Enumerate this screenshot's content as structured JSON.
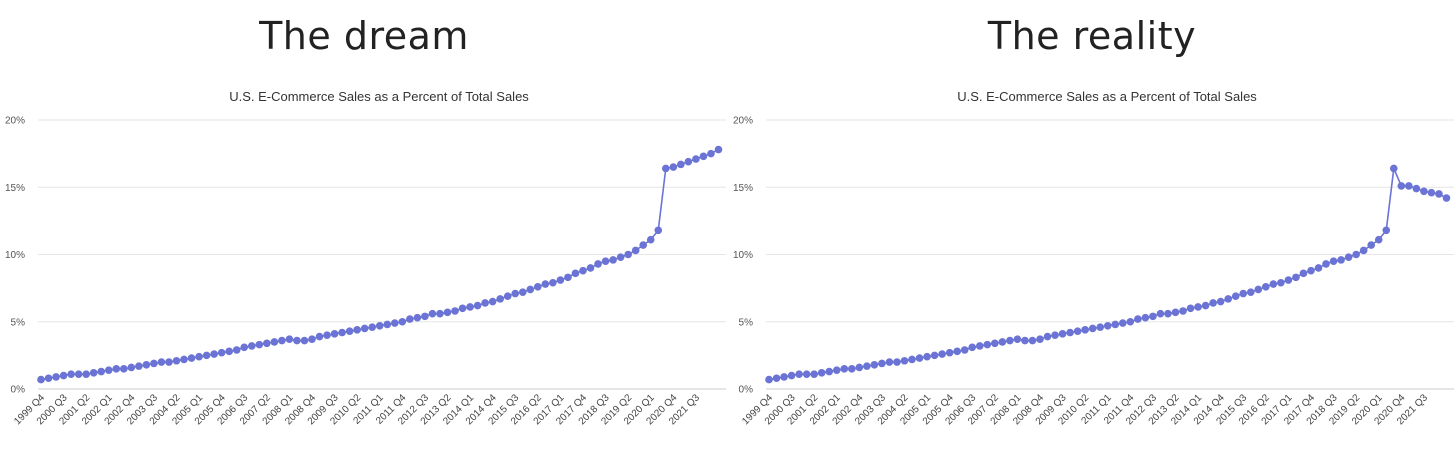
{
  "headings": {
    "left": "The dream",
    "right": "The reality"
  },
  "colors": {
    "series": "#6b74d4",
    "grid": "#e6e6e6",
    "axis": "#cccccc"
  },
  "chart_data": [
    {
      "type": "line",
      "title": "U.S. E-Commerce Sales as a Percent of Total Sales",
      "ylim": [
        0,
        20
      ],
      "yticks": [
        "0%",
        "5%",
        "10%",
        "15%",
        "20%"
      ],
      "ytick_values": [
        0,
        5,
        10,
        15,
        20
      ],
      "x_start": "1999 Q4",
      "tick_labels": [
        "1999 Q4",
        "2000 Q3",
        "2001 Q2",
        "2002 Q1",
        "2002 Q4",
        "2003 Q3",
        "2004 Q2",
        "2005 Q1",
        "2005 Q4",
        "2006 Q3",
        "2007 Q2",
        "2008 Q1",
        "2008 Q4",
        "2009 Q3",
        "2010 Q2",
        "2011 Q1",
        "2011 Q4",
        "2012 Q3",
        "2013 Q2",
        "2014 Q1",
        "2014 Q4",
        "2015 Q3",
        "2016 Q2",
        "2017 Q1",
        "2017 Q4",
        "2018 Q3",
        "2019 Q2",
        "2020 Q1",
        "2020 Q4",
        "2021 Q3"
      ],
      "tick_positions": [
        0,
        3,
        6,
        9,
        12,
        15,
        18,
        21,
        24,
        27,
        30,
        33,
        36,
        39,
        42,
        45,
        48,
        51,
        54,
        57,
        60,
        63,
        66,
        69,
        72,
        75,
        78,
        81,
        84,
        87
      ],
      "values": [
        0.7,
        0.8,
        0.9,
        1.0,
        1.1,
        1.1,
        1.1,
        1.2,
        1.3,
        1.4,
        1.5,
        1.5,
        1.6,
        1.7,
        1.8,
        1.9,
        2.0,
        2.0,
        2.1,
        2.2,
        2.3,
        2.4,
        2.5,
        2.6,
        2.7,
        2.8,
        2.9,
        3.1,
        3.2,
        3.3,
        3.4,
        3.5,
        3.6,
        3.7,
        3.6,
        3.6,
        3.7,
        3.9,
        4.0,
        4.1,
        4.2,
        4.3,
        4.4,
        4.5,
        4.6,
        4.7,
        4.8,
        4.9,
        5.0,
        5.2,
        5.3,
        5.4,
        5.6,
        5.6,
        5.7,
        5.8,
        6.0,
        6.1,
        6.2,
        6.4,
        6.5,
        6.7,
        6.9,
        7.1,
        7.2,
        7.4,
        7.6,
        7.8,
        7.9,
        8.1,
        8.3,
        8.6,
        8.8,
        9.0,
        9.3,
        9.5,
        9.6,
        9.8,
        10.0,
        10.3,
        10.7,
        11.1,
        11.8,
        16.4,
        16.5,
        16.7,
        16.9,
        17.1,
        17.3,
        17.5,
        17.8
      ]
    },
    {
      "type": "line",
      "title": "U.S. E-Commerce Sales as a Percent of Total Sales",
      "ylim": [
        0,
        20
      ],
      "yticks": [
        "0%",
        "5%",
        "10%",
        "15%",
        "20%"
      ],
      "ytick_values": [
        0,
        5,
        10,
        15,
        20
      ],
      "x_start": "1999 Q4",
      "tick_labels": [
        "1999 Q4",
        "2000 Q3",
        "2001 Q2",
        "2002 Q1",
        "2002 Q4",
        "2003 Q3",
        "2004 Q2",
        "2005 Q1",
        "2005 Q4",
        "2006 Q3",
        "2007 Q2",
        "2008 Q1",
        "2008 Q4",
        "2009 Q3",
        "2010 Q2",
        "2011 Q1",
        "2011 Q4",
        "2012 Q3",
        "2013 Q2",
        "2014 Q1",
        "2014 Q4",
        "2015 Q3",
        "2016 Q2",
        "2017 Q1",
        "2017 Q4",
        "2018 Q3",
        "2019 Q2",
        "2020 Q1",
        "2020 Q4",
        "2021 Q3"
      ],
      "tick_positions": [
        0,
        3,
        6,
        9,
        12,
        15,
        18,
        21,
        24,
        27,
        30,
        33,
        36,
        39,
        42,
        45,
        48,
        51,
        54,
        57,
        60,
        63,
        66,
        69,
        72,
        75,
        78,
        81,
        84,
        87
      ],
      "values": [
        0.7,
        0.8,
        0.9,
        1.0,
        1.1,
        1.1,
        1.1,
        1.2,
        1.3,
        1.4,
        1.5,
        1.5,
        1.6,
        1.7,
        1.8,
        1.9,
        2.0,
        2.0,
        2.1,
        2.2,
        2.3,
        2.4,
        2.5,
        2.6,
        2.7,
        2.8,
        2.9,
        3.1,
        3.2,
        3.3,
        3.4,
        3.5,
        3.6,
        3.7,
        3.6,
        3.6,
        3.7,
        3.9,
        4.0,
        4.1,
        4.2,
        4.3,
        4.4,
        4.5,
        4.6,
        4.7,
        4.8,
        4.9,
        5.0,
        5.2,
        5.3,
        5.4,
        5.6,
        5.6,
        5.7,
        5.8,
        6.0,
        6.1,
        6.2,
        6.4,
        6.5,
        6.7,
        6.9,
        7.1,
        7.2,
        7.4,
        7.6,
        7.8,
        7.9,
        8.1,
        8.3,
        8.6,
        8.8,
        9.0,
        9.3,
        9.5,
        9.6,
        9.8,
        10.0,
        10.3,
        10.7,
        11.1,
        11.8,
        16.4,
        15.1,
        15.1,
        14.9,
        14.7,
        14.6,
        14.5,
        14.2
      ]
    }
  ]
}
